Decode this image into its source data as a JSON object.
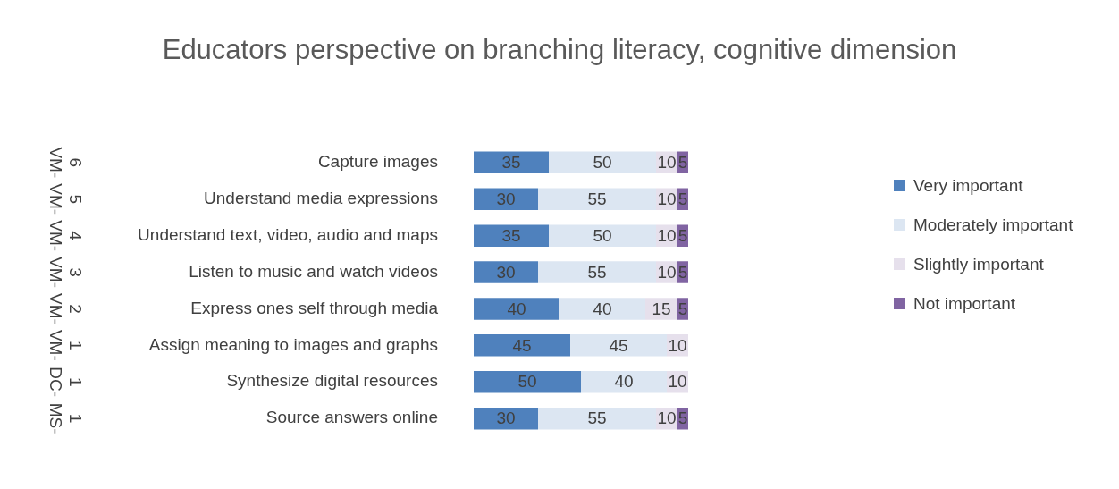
{
  "chart_data": {
    "type": "bar",
    "orientation": "horizontal",
    "stacked": true,
    "title": "Educators perspective on branching literacy, cognitive dimension",
    "categories": [
      "Capture images",
      "Understand media expressions",
      "Understand text, video, audio and maps",
      "Listen to music and watch videos",
      "Express ones self through media",
      "Assign meaning to images and graphs",
      "Synthesize digital resources",
      "Source answers online"
    ],
    "series": [
      {
        "name": "Very important",
        "color": "#4f81bd",
        "values": [
          35,
          30,
          35,
          30,
          40,
          45,
          50,
          30
        ]
      },
      {
        "name": "Moderately important",
        "color": "#dce6f2",
        "values": [
          50,
          55,
          50,
          55,
          40,
          45,
          40,
          55
        ]
      },
      {
        "name": "Slightly important",
        "color": "#e6e0ec",
        "values": [
          10,
          10,
          10,
          10,
          15,
          10,
          10,
          10
        ]
      },
      {
        "name": "Not important",
        "color": "#8064a2",
        "values": [
          5,
          5,
          5,
          5,
          5,
          null,
          null,
          5
        ]
      }
    ],
    "annotations": [
      "VM-6",
      "VM-5",
      "VM-4",
      "VM-3",
      "VM-2",
      "VM-1",
      "DC-1",
      "MS-1"
    ],
    "data_labels": true,
    "tick_labels": "y",
    "grid": false,
    "legend": "right"
  }
}
